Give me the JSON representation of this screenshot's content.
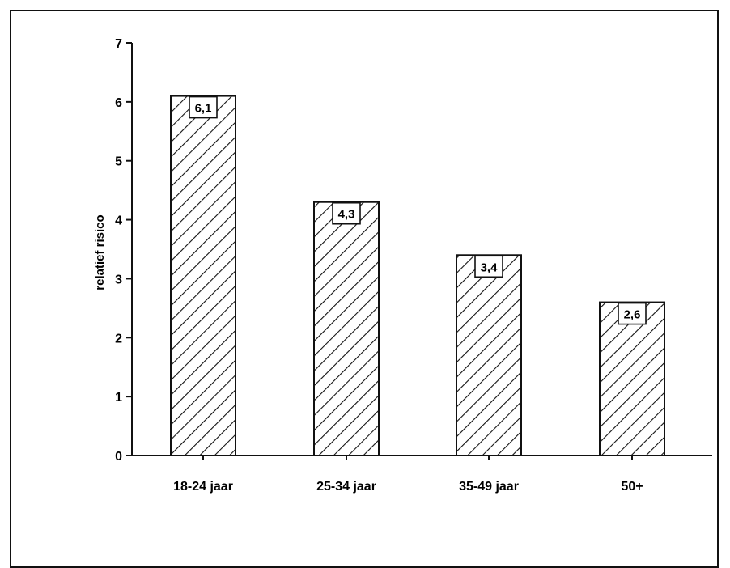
{
  "chart_data": {
    "type": "bar",
    "categories": [
      "18-24 jaar",
      "25-34 jaar",
      "35-49 jaar",
      "50+"
    ],
    "values": [
      6.1,
      4.3,
      3.4,
      2.6
    ],
    "value_labels": [
      "6,1",
      "4,3",
      "3,4",
      "2,6"
    ],
    "ylabel": "relatief risico",
    "xlabel": "",
    "ylim": [
      0,
      7
    ],
    "yticks": [
      0,
      1,
      2,
      3,
      4,
      5,
      6,
      7
    ],
    "grid": false,
    "legend": "none",
    "bar_fill": "diagonal hatch",
    "colors": {
      "ink": "#111111",
      "background": "#ffffff"
    }
  }
}
